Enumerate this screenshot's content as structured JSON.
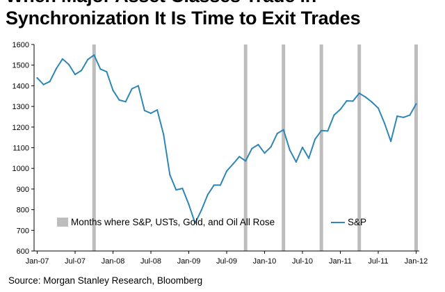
{
  "title": {
    "line1": "When Major Asset Classes Trade in",
    "line2": "Synchronization It Is Time to Exit Trades"
  },
  "source": "Source:  Morgan Stanley Research, Bloomberg",
  "colors": {
    "line": "#2E86B5",
    "highlight": "#BDBDBD",
    "axis": "#000000",
    "gridline": "#DDDDDD"
  },
  "chart_data": {
    "type": "line",
    "title": "When Major Asset Classes Trade in Synchronization It Is Time to Exit Trades",
    "xlabel": "",
    "ylabel": "",
    "ylim": [
      600,
      1600
    ],
    "yticks": [
      600,
      700,
      800,
      900,
      1000,
      1100,
      1200,
      1300,
      1400,
      1500,
      1600
    ],
    "xticks": [
      "Jan-07",
      "Jul-07",
      "Jan-08",
      "Jul-08",
      "Jan-09",
      "Jul-09",
      "Jan-10",
      "Jul-10",
      "Jan-11",
      "Jul-11",
      "Jan-12"
    ],
    "x_start": "Jan-07",
    "grid": false,
    "legend_position": "bottom",
    "legend": [
      {
        "label": "Months where S&P, USTs, Gold, and Oil All Rose",
        "kind": "bar"
      },
      {
        "label": "S&P",
        "kind": "line"
      }
    ],
    "highlight_months": [
      "Oct-07",
      "Oct-09",
      "Apr-10",
      "Oct-10",
      "Apr-11",
      "Jan-12"
    ],
    "series": [
      {
        "name": "S&P",
        "values": [
          1438,
          1406,
          1421,
          1482,
          1530,
          1503,
          1455,
          1474,
          1527,
          1549,
          1481,
          1468,
          1378,
          1331,
          1323,
          1386,
          1400,
          1280,
          1267,
          1283,
          1165,
          969,
          896,
          903,
          826,
          735,
          798,
          873,
          919,
          919,
          987,
          1021,
          1057,
          1036,
          1096,
          1115,
          1074,
          1104,
          1169,
          1187,
          1089,
          1031,
          1102,
          1049,
          1141,
          1183,
          1181,
          1258,
          1286,
          1327,
          1326,
          1364,
          1345,
          1321,
          1292,
          1219,
          1131,
          1253,
          1247,
          1258,
          1312
        ]
      }
    ]
  }
}
